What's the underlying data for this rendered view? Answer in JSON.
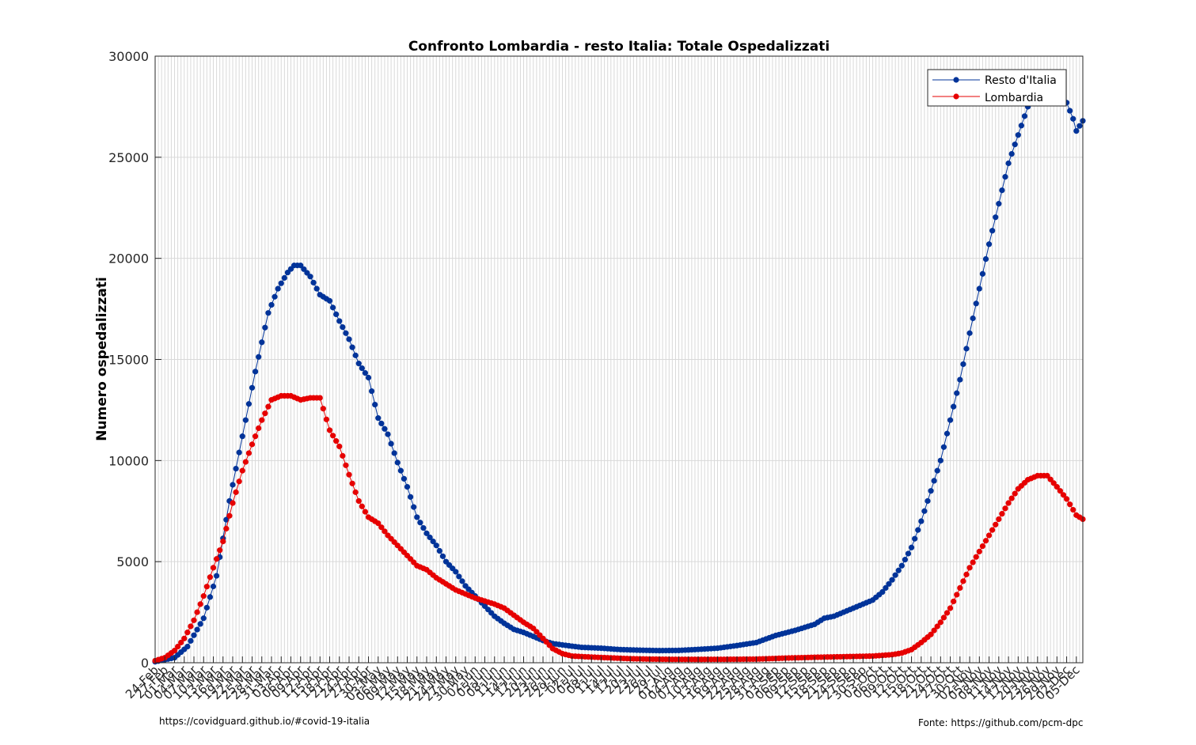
{
  "chart_data": {
    "type": "line",
    "title": "Confronto Lombardia - resto Italia: Totale Ospedalizzati",
    "xlabel": "",
    "ylabel": "Numero ospedalizzati",
    "ylim": [
      0,
      30000
    ],
    "yticks": [
      0,
      5000,
      10000,
      15000,
      20000,
      25000,
      30000
    ],
    "xlim": [
      "2020-02-24",
      "2020-12-07"
    ],
    "x_tick_labels": [
      "24-Feb",
      "27-Feb",
      "01-Mar",
      "04-Mar",
      "07-Mar",
      "10-Mar",
      "13-Mar",
      "16-Mar",
      "19-Mar",
      "22-Mar",
      "25-Mar",
      "28-Mar",
      "31-Mar",
      "03-Apr",
      "06-Apr",
      "09-Apr",
      "12-Apr",
      "15-Apr",
      "18-Apr",
      "21-Apr",
      "24-Apr",
      "27-Apr",
      "30-Apr",
      "03-May",
      "06-May",
      "09-May",
      "12-May",
      "15-May",
      "18-May",
      "21-May",
      "24-May",
      "27-May",
      "30-May",
      "02-Jun",
      "05-Jun",
      "08-Jun",
      "11-Jun",
      "14-Jun",
      "17-Jun",
      "20-Jun",
      "23-Jun",
      "26-Jun",
      "29-Jun",
      "02-Jul",
      "05-Jul",
      "08-Jul",
      "11-Jul",
      "14-Jul",
      "17-Jul",
      "20-Jul",
      "23-Jul",
      "26-Jul",
      "29-Jul",
      "01-Aug",
      "04-Aug",
      "07-Aug",
      "10-Aug",
      "13-Aug",
      "16-Aug",
      "19-Aug",
      "22-Aug",
      "25-Aug",
      "28-Aug",
      "31-Aug",
      "03-Sep",
      "06-Sep",
      "09-Sep",
      "12-Sep",
      "15-Sep",
      "18-Sep",
      "21-Sep",
      "24-Sep",
      "27-Sep",
      "30-Sep",
      "03-Oct",
      "06-Oct",
      "09-Oct",
      "12-Oct",
      "15-Oct",
      "18-Oct",
      "21-Oct",
      "24-Oct",
      "27-Oct",
      "30-Oct",
      "02-Nov",
      "05-Nov",
      "08-Nov",
      "11-Nov",
      "14-Nov",
      "17-Nov",
      "20-Nov",
      "23-Nov",
      "26-Nov",
      "29-Nov",
      "02-Dec",
      "05-Dec"
    ],
    "grid": true,
    "legend_position": "top-right",
    "series": [
      {
        "name": "Resto d'Italia",
        "color": "#003399",
        "points": [
          [
            "2020-02-24",
            50
          ],
          [
            "2020-03-01",
            250
          ],
          [
            "2020-03-05",
            800
          ],
          [
            "2020-03-10",
            2200
          ],
          [
            "2020-03-14",
            4300
          ],
          [
            "2020-03-18",
            8000
          ],
          [
            "2020-03-22",
            11200
          ],
          [
            "2020-03-26",
            14400
          ],
          [
            "2020-03-30",
            17300
          ],
          [
            "2020-04-02",
            18500
          ],
          [
            "2020-04-05",
            19300
          ],
          [
            "2020-04-07",
            19650
          ],
          [
            "2020-04-09",
            19650
          ],
          [
            "2020-04-12",
            19100
          ],
          [
            "2020-04-15",
            18200
          ],
          [
            "2020-04-18",
            17900
          ],
          [
            "2020-04-21",
            16900
          ],
          [
            "2020-04-24",
            16000
          ],
          [
            "2020-04-27",
            14800
          ],
          [
            "2020-04-30",
            14100
          ],
          [
            "2020-05-03",
            12100
          ],
          [
            "2020-05-06",
            11300
          ],
          [
            "2020-05-09",
            9900
          ],
          [
            "2020-05-12",
            8700
          ],
          [
            "2020-05-15",
            7200
          ],
          [
            "2020-05-18",
            6400
          ],
          [
            "2020-05-21",
            5800
          ],
          [
            "2020-05-24",
            5000
          ],
          [
            "2020-05-27",
            4500
          ],
          [
            "2020-05-30",
            3800
          ],
          [
            "2020-06-02",
            3300
          ],
          [
            "2020-06-05",
            2800
          ],
          [
            "2020-06-08",
            2300
          ],
          [
            "2020-06-11",
            1950
          ],
          [
            "2020-06-14",
            1650
          ],
          [
            "2020-06-17",
            1500
          ],
          [
            "2020-06-20",
            1300
          ],
          [
            "2020-06-23",
            1100
          ],
          [
            "2020-06-26",
            950
          ],
          [
            "2020-06-29",
            880
          ],
          [
            "2020-07-02",
            820
          ],
          [
            "2020-07-05",
            760
          ],
          [
            "2020-07-11",
            720
          ],
          [
            "2020-07-17",
            650
          ],
          [
            "2020-07-23",
            620
          ],
          [
            "2020-07-29",
            600
          ],
          [
            "2020-08-04",
            610
          ],
          [
            "2020-08-10",
            660
          ],
          [
            "2020-08-16",
            720
          ],
          [
            "2020-08-22",
            850
          ],
          [
            "2020-08-28",
            1000
          ],
          [
            "2020-09-03",
            1350
          ],
          [
            "2020-09-09",
            1600
          ],
          [
            "2020-09-15",
            1900
          ],
          [
            "2020-09-18",
            2200
          ],
          [
            "2020-09-21",
            2300
          ],
          [
            "2020-09-24",
            2500
          ],
          [
            "2020-09-27",
            2700
          ],
          [
            "2020-09-30",
            2900
          ],
          [
            "2020-10-03",
            3100
          ],
          [
            "2020-10-06",
            3500
          ],
          [
            "2020-10-09",
            4100
          ],
          [
            "2020-10-12",
            4800
          ],
          [
            "2020-10-15",
            5700
          ],
          [
            "2020-10-18",
            7000
          ],
          [
            "2020-10-21",
            8500
          ],
          [
            "2020-10-24",
            10000
          ],
          [
            "2020-10-27",
            12000
          ],
          [
            "2020-10-30",
            14000
          ],
          [
            "2020-11-02",
            16300
          ],
          [
            "2020-11-05",
            18500
          ],
          [
            "2020-11-08",
            20700
          ],
          [
            "2020-11-11",
            22700
          ],
          [
            "2020-11-14",
            24700
          ],
          [
            "2020-11-17",
            26100
          ],
          [
            "2020-11-20",
            27500
          ],
          [
            "2020-11-23",
            28500
          ],
          [
            "2020-11-26",
            29100
          ],
          [
            "2020-11-29",
            28700
          ],
          [
            "2020-12-02",
            27700
          ],
          [
            "2020-12-04",
            26900
          ],
          [
            "2020-12-05",
            26300
          ],
          [
            "2020-12-07",
            26800
          ]
        ]
      },
      {
        "name": "Lombardia",
        "color": "#e60000",
        "points": [
          [
            "2020-02-24",
            100
          ],
          [
            "2020-02-27",
            250
          ],
          [
            "2020-03-01",
            600
          ],
          [
            "2020-03-04",
            1200
          ],
          [
            "2020-03-07",
            2100
          ],
          [
            "2020-03-10",
            3300
          ],
          [
            "2020-03-13",
            4700
          ],
          [
            "2020-03-16",
            6000
          ],
          [
            "2020-03-19",
            7900
          ],
          [
            "2020-03-22",
            9500
          ],
          [
            "2020-03-25",
            10800
          ],
          [
            "2020-03-28",
            12000
          ],
          [
            "2020-03-31",
            13000
          ],
          [
            "2020-04-03",
            13200
          ],
          [
            "2020-04-06",
            13200
          ],
          [
            "2020-04-09",
            13000
          ],
          [
            "2020-04-12",
            13100
          ],
          [
            "2020-04-15",
            13100
          ],
          [
            "2020-04-18",
            11500
          ],
          [
            "2020-04-21",
            10700
          ],
          [
            "2020-04-24",
            9300
          ],
          [
            "2020-04-27",
            8000
          ],
          [
            "2020-04-30",
            7200
          ],
          [
            "2020-05-03",
            6900
          ],
          [
            "2020-05-06",
            6300
          ],
          [
            "2020-05-09",
            5800
          ],
          [
            "2020-05-12",
            5300
          ],
          [
            "2020-05-15",
            4800
          ],
          [
            "2020-05-18",
            4600
          ],
          [
            "2020-05-21",
            4200
          ],
          [
            "2020-05-24",
            3900
          ],
          [
            "2020-05-27",
            3600
          ],
          [
            "2020-05-30",
            3400
          ],
          [
            "2020-06-02",
            3200
          ],
          [
            "2020-06-05",
            3050
          ],
          [
            "2020-06-08",
            2900
          ],
          [
            "2020-06-11",
            2700
          ],
          [
            "2020-06-14",
            2350
          ],
          [
            "2020-06-17",
            2000
          ],
          [
            "2020-06-20",
            1700
          ],
          [
            "2020-06-23",
            1200
          ],
          [
            "2020-06-26",
            700
          ],
          [
            "2020-06-29",
            450
          ],
          [
            "2020-07-02",
            330
          ],
          [
            "2020-07-08",
            280
          ],
          [
            "2020-07-14",
            240
          ],
          [
            "2020-07-20",
            200
          ],
          [
            "2020-07-26",
            180
          ],
          [
            "2020-08-01",
            170
          ],
          [
            "2020-08-10",
            165
          ],
          [
            "2020-08-19",
            170
          ],
          [
            "2020-08-28",
            180
          ],
          [
            "2020-09-06",
            230
          ],
          [
            "2020-09-15",
            270
          ],
          [
            "2020-09-24",
            300
          ],
          [
            "2020-10-03",
            330
          ],
          [
            "2020-10-09",
            400
          ],
          [
            "2020-10-12",
            480
          ],
          [
            "2020-10-15",
            650
          ],
          [
            "2020-10-18",
            1000
          ],
          [
            "2020-10-21",
            1400
          ],
          [
            "2020-10-24",
            2000
          ],
          [
            "2020-10-27",
            2700
          ],
          [
            "2020-10-30",
            3700
          ],
          [
            "2020-11-02",
            4700
          ],
          [
            "2020-11-05",
            5500
          ],
          [
            "2020-11-08",
            6300
          ],
          [
            "2020-11-11",
            7100
          ],
          [
            "2020-11-14",
            7900
          ],
          [
            "2020-11-17",
            8600
          ],
          [
            "2020-11-20",
            9050
          ],
          [
            "2020-11-23",
            9250
          ],
          [
            "2020-11-26",
            9250
          ],
          [
            "2020-11-29",
            8700
          ],
          [
            "2020-12-02",
            8100
          ],
          [
            "2020-12-05",
            7300
          ],
          [
            "2020-12-07",
            7100
          ]
        ]
      }
    ]
  },
  "footer": {
    "left": "https://covidguard.github.io/#covid-19-italia",
    "right": "Fonte: https://github.com/pcm-dpc"
  }
}
